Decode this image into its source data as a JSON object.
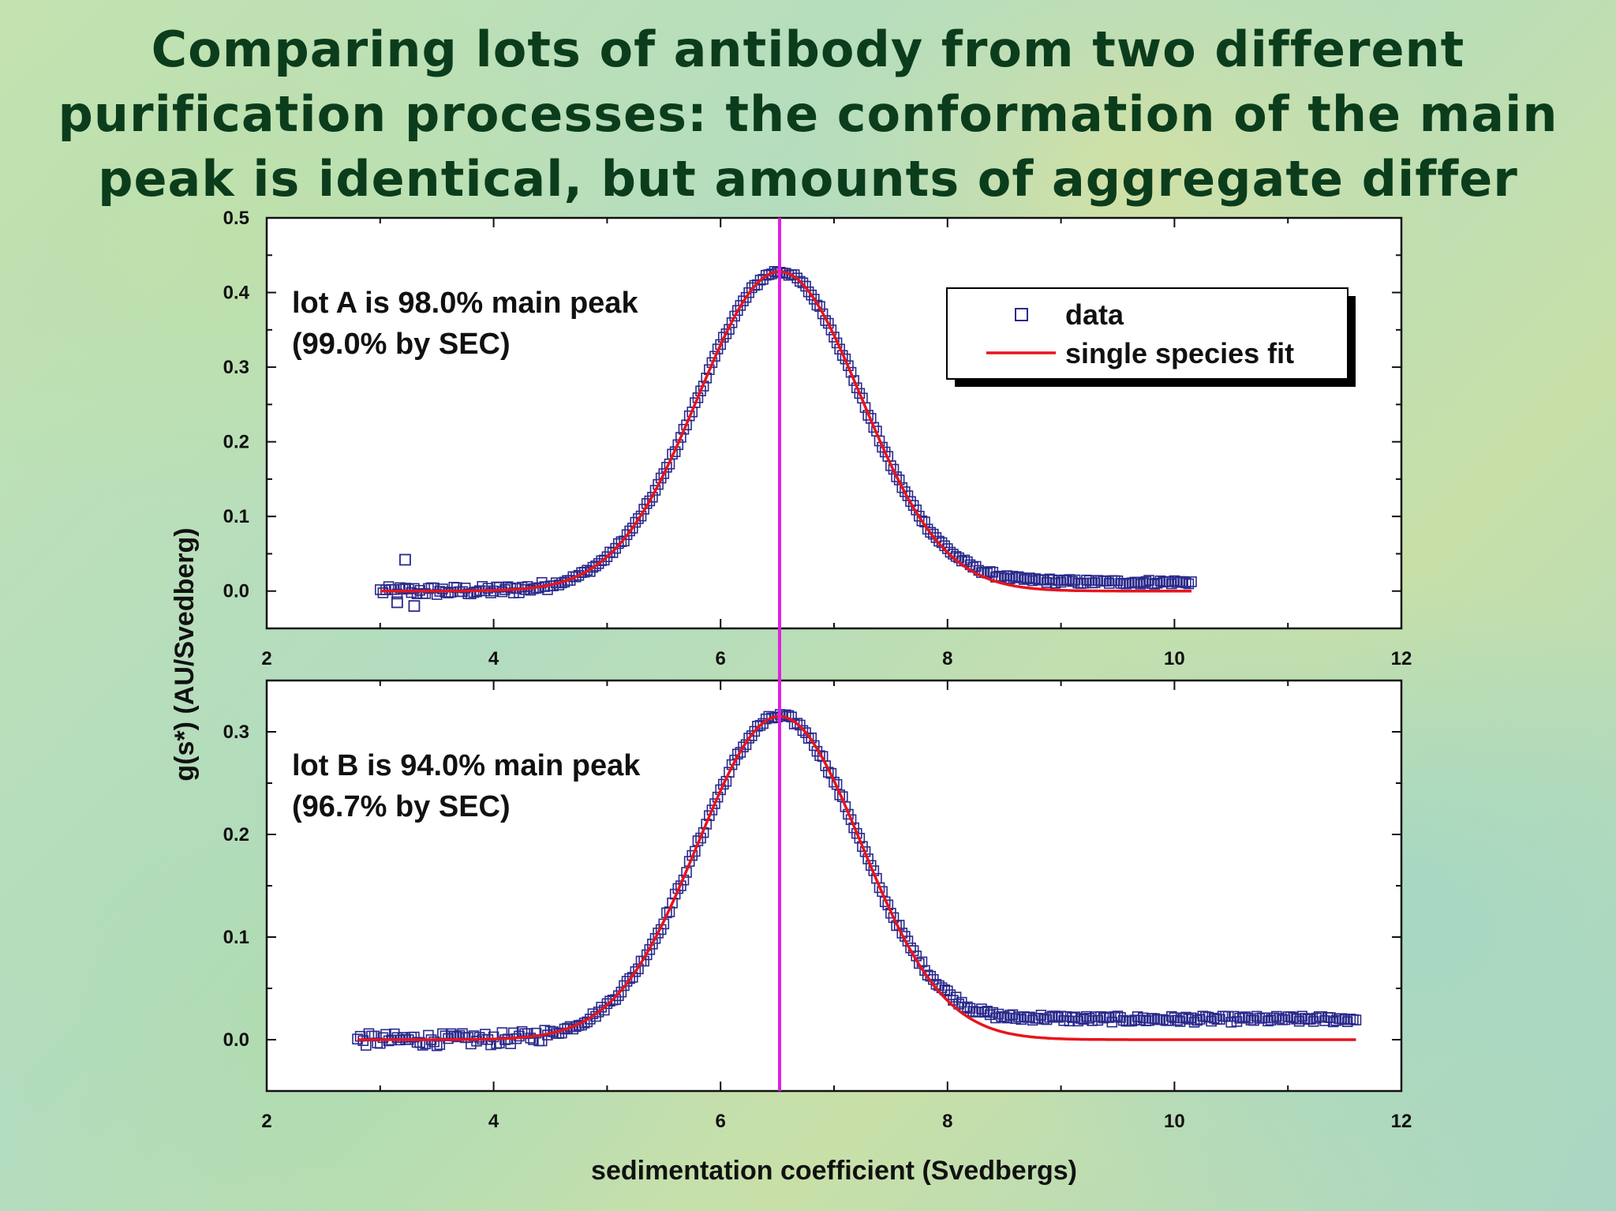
{
  "title": "Comparing lots of antibody from two different purification processes: the conformation of the main peak is identical, but amounts of aggregate differ",
  "colors": {
    "data_marker": "#2a2a8c",
    "fit_line": "#e8141c",
    "reference_line": "#e020e0",
    "axes": "#111111"
  },
  "chart_data": {
    "type": "scatter",
    "xlabel": "sedimentation coefficient (Svedbergs)",
    "ylabel": "g(s*) (AU/Svedberg)",
    "reference_line_x": 6.52,
    "legend": {
      "placement": "top-right (top panel)",
      "entries": [
        {
          "label": "data",
          "marker": "open-square",
          "color": "#2a2a8c"
        },
        {
          "label": "single species fit",
          "marker": "line",
          "color": "#e8141c"
        }
      ]
    },
    "panels": [
      {
        "name": "top",
        "annotation": [
          "lot A is 98.0% main peak",
          "(99.0% by SEC)"
        ],
        "xlim": [
          2,
          12
        ],
        "ylim": [
          -0.05,
          0.5
        ],
        "xticks": [
          2,
          4,
          6,
          8,
          10,
          12
        ],
        "xtick_labels": [
          "2",
          "4",
          "6",
          "8",
          "10",
          "12"
        ],
        "yticks": [
          0.0,
          0.1,
          0.2,
          0.3,
          0.4,
          0.5
        ],
        "ytick_labels": [
          "0.0",
          "0.1",
          "0.2",
          "0.3",
          "0.4",
          "0.5"
        ],
        "data_x_range": [
          3.0,
          10.15
        ],
        "fit": {
          "model": "gaussian",
          "peak_x": 6.52,
          "peak_y": 0.428,
          "sigma": 0.72,
          "x_range": [
            3.0,
            10.15
          ]
        },
        "aggregate_tail": {
          "start_x": 7.5,
          "level": 0.012,
          "end_x": 10.15
        },
        "outliers": [
          {
            "x": 3.22,
            "y": 0.042
          },
          {
            "x": 3.3,
            "y": -0.02
          },
          {
            "x": 3.15,
            "y": -0.015
          }
        ]
      },
      {
        "name": "bottom",
        "annotation": [
          "lot B is 94.0% main peak",
          "(96.7% by SEC)"
        ],
        "xlim": [
          2,
          12
        ],
        "ylim": [
          -0.05,
          0.35
        ],
        "xticks": [
          2,
          4,
          6,
          8,
          10,
          12
        ],
        "xtick_labels": [
          "2",
          "4",
          "6",
          "8",
          "10",
          "12"
        ],
        "yticks": [
          0.0,
          0.1,
          0.2,
          0.3
        ],
        "ytick_labels": [
          "0.0",
          "0.1",
          "0.2",
          "0.3"
        ],
        "data_x_range": [
          2.8,
          11.6
        ],
        "fit": {
          "model": "gaussian",
          "peak_x": 6.52,
          "peak_y": 0.315,
          "sigma": 0.72,
          "x_range": [
            2.8,
            11.6
          ]
        },
        "aggregate_tail": {
          "start_x": 7.5,
          "level": 0.02,
          "end_x": 11.6
        },
        "outliers": []
      }
    ]
  }
}
